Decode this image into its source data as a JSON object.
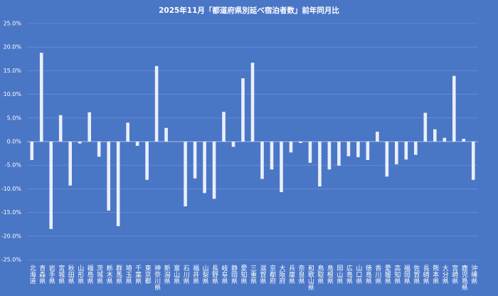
{
  "chart_data": {
    "type": "bar",
    "title": "2025年11月「都道府県別延べ宿泊者数」前年同月比",
    "categories": [
      "北海道",
      "青森県",
      "岩手県",
      "宮城県",
      "秋田県",
      "山形県",
      "福島県",
      "茨城県",
      "栃木県",
      "群馬県",
      "埼玉県",
      "千葉県",
      "東京都",
      "神奈川県",
      "新潟県",
      "富山県",
      "石川県",
      "福井県",
      "山梨県",
      "長野県",
      "岐阜県",
      "静岡県",
      "愛知県",
      "三重県",
      "滋賀県",
      "京都府",
      "大阪府",
      "兵庫県",
      "奈良県",
      "和歌山県",
      "鳥取県",
      "島根県",
      "岡山県",
      "広島県",
      "山口県",
      "徳島県",
      "香川県",
      "愛媛県",
      "高知県",
      "福岡県",
      "佐賀県",
      "長崎県",
      "熊本県",
      "大分県",
      "宮崎県",
      "鹿児島県",
      "沖縄県"
    ],
    "values": [
      -3.9,
      18.8,
      -18.5,
      5.6,
      -9.3,
      -0.4,
      6.2,
      -3.2,
      -14.6,
      -17.9,
      4.0,
      -0.9,
      -8.1,
      16.0,
      2.9,
      0,
      -13.7,
      -7.8,
      -10.9,
      -12.1,
      6.3,
      -1.1,
      13.4,
      16.7,
      -7.9,
      -5.9,
      -10.7,
      -2.3,
      -0.3,
      -4.5,
      -9.5,
      -5.9,
      -5.1,
      -3.1,
      -3.3,
      -3.9,
      2.1,
      -7.4,
      -4.8,
      -3.8,
      -2.8,
      6.1,
      2.6,
      0.8,
      13.9,
      0.6,
      -8.1
    ],
    "color": "#ffffff",
    "ylim": [
      -25,
      25
    ],
    "yticks": [
      {
        "value": -25,
        "label": "-25.0%"
      },
      {
        "value": -20,
        "label": "-20.0%"
      },
      {
        "value": -15,
        "label": "-15.0%"
      },
      {
        "value": -10,
        "label": "-10.0%"
      },
      {
        "value": -5,
        "label": "-5.0%"
      },
      {
        "value": 0,
        "label": "0.0%"
      },
      {
        "value": 5,
        "label": "5.0%"
      },
      {
        "value": 10,
        "label": "10.0%"
      },
      {
        "value": 15,
        "label": "15.0%"
      },
      {
        "value": 20,
        "label": "20.0%"
      },
      {
        "value": 25,
        "label": "25.0%"
      }
    ],
    "grid": true
  }
}
